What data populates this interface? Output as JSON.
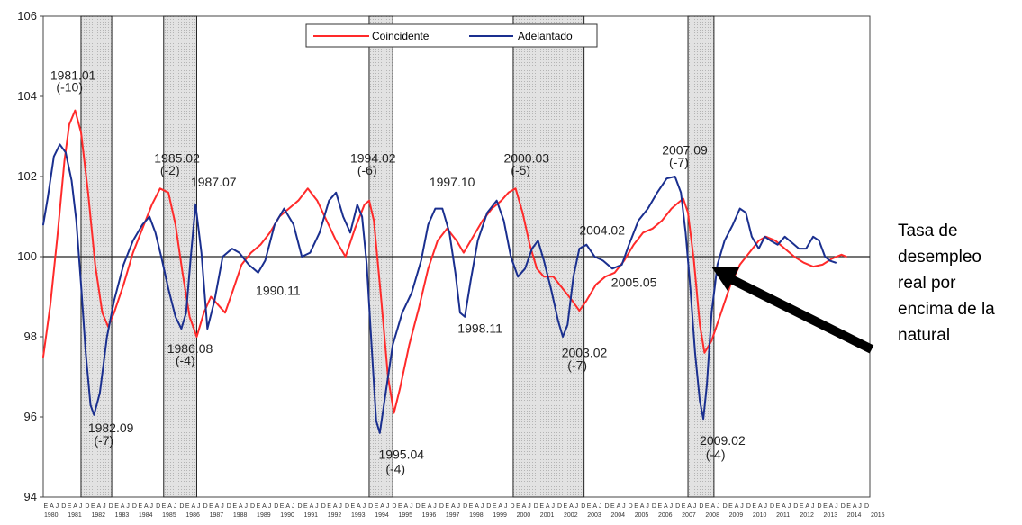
{
  "chart_data": {
    "type": "line",
    "x_range": [
      1980.0,
      2015.0
    ],
    "ylim": [
      94,
      106
    ],
    "y_ticks": [
      "94",
      "96",
      "98",
      "100",
      "102",
      "104",
      "106"
    ],
    "reference_line": 100,
    "grid": false,
    "legend_position": "top-center",
    "x_tick_months": "EAJD",
    "year_labels": [
      "1980",
      "1981",
      "1982",
      "1983",
      "1984",
      "1985",
      "1986",
      "1987",
      "1988",
      "1989",
      "1990",
      "1991",
      "1992",
      "1993",
      "1994",
      "1995",
      "1996",
      "1997",
      "1998",
      "1999",
      "2000",
      "2001",
      "2002",
      "2003",
      "2004",
      "2005",
      "2006",
      "2007",
      "2008",
      "2009",
      "2010",
      "2011",
      "2012",
      "2013",
      "2014",
      "2015"
    ],
    "recessions": [
      [
        1981.6,
        1982.9
      ],
      [
        1985.1,
        1986.5
      ],
      [
        1993.8,
        1994.8
      ],
      [
        1999.9,
        2002.9
      ],
      [
        2007.3,
        2008.4
      ]
    ],
    "series": [
      {
        "name": "Coincidente",
        "color": "#ff2a2a",
        "points": [
          [
            1980.0,
            97.5
          ],
          [
            1980.3,
            98.8
          ],
          [
            1980.6,
            100.5
          ],
          [
            1980.9,
            102.4
          ],
          [
            1981.1,
            103.3
          ],
          [
            1981.35,
            103.65
          ],
          [
            1981.6,
            103.1
          ],
          [
            1981.9,
            101.6
          ],
          [
            1982.2,
            99.8
          ],
          [
            1982.5,
            98.6
          ],
          [
            1982.75,
            98.25
          ],
          [
            1983.0,
            98.6
          ],
          [
            1983.4,
            99.3
          ],
          [
            1983.8,
            100.1
          ],
          [
            1984.2,
            100.7
          ],
          [
            1984.6,
            101.3
          ],
          [
            1984.95,
            101.7
          ],
          [
            1985.3,
            101.6
          ],
          [
            1985.6,
            100.8
          ],
          [
            1985.9,
            99.6
          ],
          [
            1986.2,
            98.5
          ],
          [
            1986.5,
            98.0
          ],
          [
            1986.8,
            98.6
          ],
          [
            1987.1,
            99.0
          ],
          [
            1987.4,
            98.8
          ],
          [
            1987.7,
            98.6
          ],
          [
            1988.0,
            99.1
          ],
          [
            1988.4,
            99.8
          ],
          [
            1988.8,
            100.1
          ],
          [
            1989.2,
            100.3
          ],
          [
            1989.6,
            100.6
          ],
          [
            1990.0,
            101.0
          ],
          [
            1990.4,
            101.2
          ],
          [
            1990.8,
            101.4
          ],
          [
            1991.2,
            101.7
          ],
          [
            1991.6,
            101.4
          ],
          [
            1992.0,
            100.9
          ],
          [
            1992.4,
            100.4
          ],
          [
            1992.8,
            100.0
          ],
          [
            1993.2,
            100.7
          ],
          [
            1993.6,
            101.3
          ],
          [
            1993.8,
            101.4
          ],
          [
            1994.0,
            100.9
          ],
          [
            1994.3,
            99.0
          ],
          [
            1994.6,
            97.0
          ],
          [
            1994.85,
            96.1
          ],
          [
            1995.1,
            96.7
          ],
          [
            1995.5,
            97.8
          ],
          [
            1995.9,
            98.7
          ],
          [
            1996.3,
            99.7
          ],
          [
            1996.7,
            100.4
          ],
          [
            1997.1,
            100.7
          ],
          [
            1997.5,
            100.4
          ],
          [
            1997.8,
            100.1
          ],
          [
            1998.2,
            100.5
          ],
          [
            1998.6,
            100.9
          ],
          [
            1999.0,
            101.2
          ],
          [
            1999.4,
            101.4
          ],
          [
            1999.7,
            101.6
          ],
          [
            2000.0,
            101.7
          ],
          [
            2000.3,
            101.1
          ],
          [
            2000.6,
            100.3
          ],
          [
            2000.9,
            99.7
          ],
          [
            2001.2,
            99.5
          ],
          [
            2001.6,
            99.5
          ],
          [
            2002.0,
            99.2
          ],
          [
            2002.4,
            98.9
          ],
          [
            2002.7,
            98.65
          ],
          [
            2003.0,
            98.9
          ],
          [
            2003.4,
            99.3
          ],
          [
            2003.8,
            99.5
          ],
          [
            2004.2,
            99.6
          ],
          [
            2004.6,
            99.9
          ],
          [
            2005.0,
            100.3
          ],
          [
            2005.4,
            100.6
          ],
          [
            2005.8,
            100.7
          ],
          [
            2006.2,
            100.9
          ],
          [
            2006.6,
            101.2
          ],
          [
            2006.9,
            101.35
          ],
          [
            2007.1,
            101.45
          ],
          [
            2007.3,
            101.1
          ],
          [
            2007.55,
            99.9
          ],
          [
            2007.8,
            98.3
          ],
          [
            2008.0,
            97.6
          ],
          [
            2008.3,
            97.9
          ],
          [
            2008.7,
            98.6
          ],
          [
            2009.1,
            99.3
          ],
          [
            2009.5,
            99.8
          ],
          [
            2009.9,
            100.1
          ],
          [
            2010.3,
            100.4
          ],
          [
            2010.6,
            100.5
          ],
          [
            2011.0,
            100.4
          ],
          [
            2011.4,
            100.2
          ],
          [
            2011.8,
            100.0
          ],
          [
            2012.2,
            99.85
          ],
          [
            2012.6,
            99.75
          ],
          [
            2013.0,
            99.8
          ],
          [
            2013.4,
            99.95
          ],
          [
            2013.8,
            100.05
          ],
          [
            2014.0,
            100.0
          ]
        ]
      },
      {
        "name": "Adelantado",
        "color": "#1a2f8f",
        "points": [
          [
            1980.0,
            100.8
          ],
          [
            1980.2,
            101.5
          ],
          [
            1980.45,
            102.5
          ],
          [
            1980.7,
            102.8
          ],
          [
            1980.95,
            102.6
          ],
          [
            1981.2,
            101.9
          ],
          [
            1981.4,
            100.9
          ],
          [
            1981.6,
            99.3
          ],
          [
            1981.8,
            97.6
          ],
          [
            1982.0,
            96.3
          ],
          [
            1982.15,
            96.05
          ],
          [
            1982.4,
            96.6
          ],
          [
            1982.7,
            98.0
          ],
          [
            1983.0,
            98.9
          ],
          [
            1983.4,
            99.8
          ],
          [
            1983.8,
            100.4
          ],
          [
            1984.2,
            100.8
          ],
          [
            1984.5,
            101.0
          ],
          [
            1984.75,
            100.6
          ],
          [
            1985.0,
            100.0
          ],
          [
            1985.3,
            99.2
          ],
          [
            1985.6,
            98.5
          ],
          [
            1985.85,
            98.2
          ],
          [
            1986.05,
            98.6
          ],
          [
            1986.25,
            100.0
          ],
          [
            1986.45,
            101.3
          ],
          [
            1986.7,
            100.1
          ],
          [
            1986.95,
            98.2
          ],
          [
            1987.25,
            98.9
          ],
          [
            1987.6,
            100.0
          ],
          [
            1988.0,
            100.2
          ],
          [
            1988.3,
            100.1
          ],
          [
            1988.7,
            99.8
          ],
          [
            1989.1,
            99.6
          ],
          [
            1989.4,
            99.9
          ],
          [
            1989.8,
            100.8
          ],
          [
            1990.2,
            101.2
          ],
          [
            1990.6,
            100.8
          ],
          [
            1990.95,
            100.0
          ],
          [
            1991.3,
            100.1
          ],
          [
            1991.7,
            100.6
          ],
          [
            1992.1,
            101.4
          ],
          [
            1992.4,
            101.6
          ],
          [
            1992.7,
            101.0
          ],
          [
            1993.0,
            100.6
          ],
          [
            1993.3,
            101.3
          ],
          [
            1993.5,
            101.0
          ],
          [
            1993.7,
            99.8
          ],
          [
            1993.9,
            97.8
          ],
          [
            1994.1,
            95.9
          ],
          [
            1994.25,
            95.6
          ],
          [
            1994.5,
            96.6
          ],
          [
            1994.8,
            97.8
          ],
          [
            1995.2,
            98.6
          ],
          [
            1995.6,
            99.1
          ],
          [
            1996.0,
            99.9
          ],
          [
            1996.3,
            100.8
          ],
          [
            1996.6,
            101.2
          ],
          [
            1996.9,
            101.2
          ],
          [
            1997.2,
            100.6
          ],
          [
            1997.45,
            99.6
          ],
          [
            1997.65,
            98.6
          ],
          [
            1997.85,
            98.5
          ],
          [
            1998.1,
            99.4
          ],
          [
            1998.4,
            100.4
          ],
          [
            1998.8,
            101.1
          ],
          [
            1999.2,
            101.4
          ],
          [
            1999.5,
            100.9
          ],
          [
            1999.8,
            100.0
          ],
          [
            2000.1,
            99.5
          ],
          [
            2000.4,
            99.7
          ],
          [
            2000.7,
            100.2
          ],
          [
            2000.95,
            100.4
          ],
          [
            2001.2,
            99.9
          ],
          [
            2001.5,
            99.2
          ],
          [
            2001.8,
            98.4
          ],
          [
            2002.0,
            98.0
          ],
          [
            2002.2,
            98.3
          ],
          [
            2002.45,
            99.5
          ],
          [
            2002.7,
            100.2
          ],
          [
            2003.0,
            100.3
          ],
          [
            2003.35,
            100.0
          ],
          [
            2003.7,
            99.9
          ],
          [
            2004.1,
            99.7
          ],
          [
            2004.5,
            99.8
          ],
          [
            2004.8,
            100.3
          ],
          [
            2005.2,
            100.9
          ],
          [
            2005.6,
            101.2
          ],
          [
            2006.0,
            101.6
          ],
          [
            2006.4,
            101.95
          ],
          [
            2006.75,
            102.0
          ],
          [
            2007.0,
            101.6
          ],
          [
            2007.2,
            100.6
          ],
          [
            2007.4,
            99.2
          ],
          [
            2007.6,
            97.6
          ],
          [
            2007.8,
            96.4
          ],
          [
            2007.95,
            95.95
          ],
          [
            2008.1,
            96.8
          ],
          [
            2008.3,
            98.6
          ],
          [
            2008.55,
            99.8
          ],
          [
            2008.85,
            100.4
          ],
          [
            2009.2,
            100.8
          ],
          [
            2009.5,
            101.2
          ],
          [
            2009.75,
            101.1
          ],
          [
            2010.0,
            100.5
          ],
          [
            2010.3,
            100.2
          ],
          [
            2010.55,
            100.5
          ],
          [
            2010.8,
            100.4
          ],
          [
            2011.1,
            100.3
          ],
          [
            2011.4,
            100.5
          ],
          [
            2011.7,
            100.35
          ],
          [
            2012.0,
            100.2
          ],
          [
            2012.3,
            100.2
          ],
          [
            2012.6,
            100.5
          ],
          [
            2012.85,
            100.4
          ],
          [
            2013.1,
            100.0
          ],
          [
            2013.3,
            99.9
          ],
          [
            2013.55,
            99.85
          ]
        ]
      }
    ],
    "annotations": [
      {
        "text": "1981.01",
        "x": 1980.3,
        "y": 104.42
      },
      {
        "text": "(-10)",
        "x": 1980.55,
        "y": 104.12
      },
      {
        "text": "1982.09",
        "x": 1981.9,
        "y": 95.62
      },
      {
        "text": "(-7)",
        "x": 1982.15,
        "y": 95.3
      },
      {
        "text": "1985.02",
        "x": 1984.7,
        "y": 102.35
      },
      {
        "text": "(-2)",
        "x": 1984.95,
        "y": 102.05
      },
      {
        "text": "1987.07",
        "x": 1986.25,
        "y": 101.75
      },
      {
        "text": "1986.08",
        "x": 1985.25,
        "y": 97.6
      },
      {
        "text": "(-4)",
        "x": 1985.6,
        "y": 97.3
      },
      {
        "text": "1990.11",
        "x": 1989.0,
        "y": 99.05
      },
      {
        "text": "1994.02",
        "x": 1993.0,
        "y": 102.35
      },
      {
        "text": "(-6)",
        "x": 1993.3,
        "y": 102.05
      },
      {
        "text": "1995.04",
        "x": 1994.2,
        "y": 94.95
      },
      {
        "text": "(-4)",
        "x": 1994.5,
        "y": 94.6
      },
      {
        "text": "1997.10",
        "x": 1996.35,
        "y": 101.75
      },
      {
        "text": "1998.11",
        "x": 1997.55,
        "y": 98.1
      },
      {
        "text": "2000.03",
        "x": 1999.5,
        "y": 102.35
      },
      {
        "text": "(-5)",
        "x": 1999.8,
        "y": 102.05
      },
      {
        "text": "2004.02",
        "x": 2002.7,
        "y": 100.55
      },
      {
        "text": "2005.05",
        "x": 2004.05,
        "y": 99.25
      },
      {
        "text": "2003.02",
        "x": 2001.95,
        "y": 97.5
      },
      {
        "text": "(-7)",
        "x": 2002.2,
        "y": 97.18
      },
      {
        "text": "2007.09",
        "x": 2006.2,
        "y": 102.55
      },
      {
        "text": "(-7)",
        "x": 2006.5,
        "y": 102.25
      },
      {
        "text": "2009.02",
        "x": 2007.8,
        "y": 95.3
      },
      {
        "text": "(-4)",
        "x": 2008.05,
        "y": 94.95
      }
    ]
  },
  "side_note": {
    "lines": [
      "Tasa de",
      "desempleo",
      "real por",
      "encima de la",
      "natural"
    ]
  }
}
